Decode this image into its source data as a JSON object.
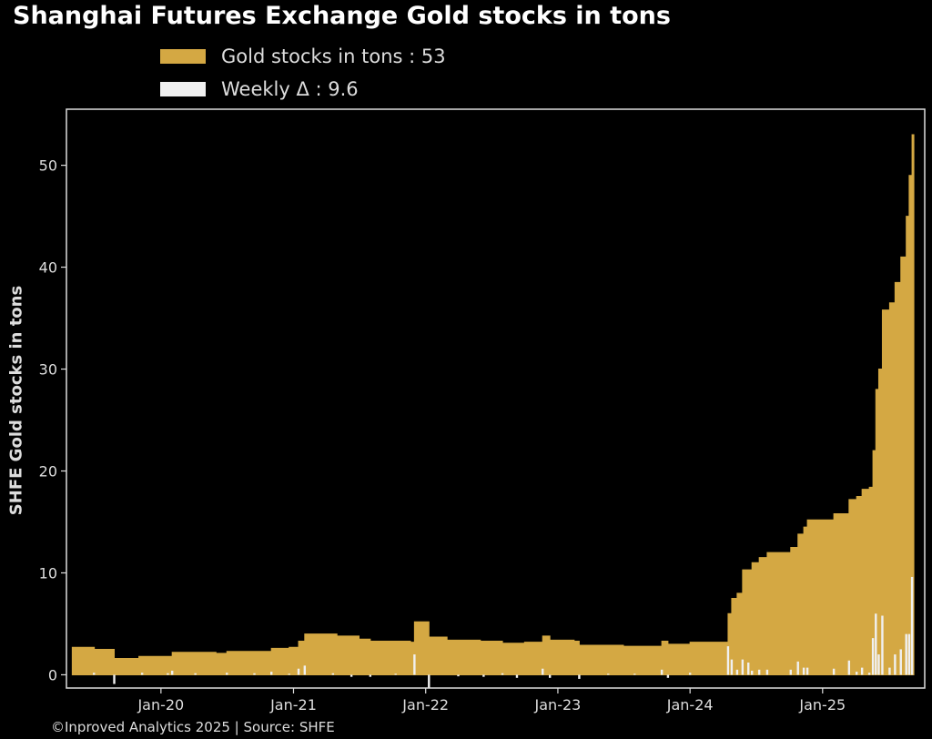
{
  "chart_data": {
    "type": "area",
    "title": "Shanghai Futures Exchange Gold stocks in tons",
    "ylabel": "SHFE Gold stocks in tons",
    "ylim": [
      -1.3,
      55.5
    ],
    "xlim": [
      "2019-04-15",
      "2025-10-10"
    ],
    "yticks": [
      0,
      10,
      20,
      30,
      40,
      50
    ],
    "xticks": [
      {
        "date": "2020-01-01",
        "label": "Jan-20"
      },
      {
        "date": "2021-01-01",
        "label": "Jan-21"
      },
      {
        "date": "2022-01-01",
        "label": "Jan-22"
      },
      {
        "date": "2023-01-01",
        "label": "Jan-23"
      },
      {
        "date": "2024-01-01",
        "label": "Jan-24"
      },
      {
        "date": "2025-01-01",
        "label": "Jan-25"
      }
    ],
    "grid": false,
    "legend_position": "top-left",
    "colors": {
      "stock": "#d4a843",
      "delta": "#f0f0f0",
      "background": "#000000",
      "axis": "#dddddd"
    },
    "series": [
      {
        "name": "Gold stocks in tons",
        "legend_label": "Gold stocks in tons : 53",
        "kind": "area",
        "points": [
          [
            "2019-05-01",
            2.7
          ],
          [
            "2019-06-15",
            2.7
          ],
          [
            "2019-07-01",
            2.5
          ],
          [
            "2019-08-15",
            2.5
          ],
          [
            "2019-08-25",
            1.6
          ],
          [
            "2019-10-15",
            1.6
          ],
          [
            "2019-11-01",
            1.8
          ],
          [
            "2020-01-15",
            1.8
          ],
          [
            "2020-02-01",
            2.2
          ],
          [
            "2020-06-01",
            2.1
          ],
          [
            "2020-07-01",
            2.3
          ],
          [
            "2020-10-01",
            2.3
          ],
          [
            "2020-11-01",
            2.6
          ],
          [
            "2020-12-20",
            2.7
          ],
          [
            "2021-01-15",
            3.3
          ],
          [
            "2021-02-01",
            4.0
          ],
          [
            "2021-05-01",
            3.8
          ],
          [
            "2021-07-01",
            3.5
          ],
          [
            "2021-08-01",
            3.3
          ],
          [
            "2021-11-20",
            3.2
          ],
          [
            "2021-12-01",
            5.2
          ],
          [
            "2021-12-25",
            5.2
          ],
          [
            "2022-01-10",
            3.7
          ],
          [
            "2022-03-01",
            3.4
          ],
          [
            "2022-06-01",
            3.3
          ],
          [
            "2022-08-01",
            3.1
          ],
          [
            "2022-10-01",
            3.2
          ],
          [
            "2022-11-20",
            3.8
          ],
          [
            "2022-12-10",
            3.4
          ],
          [
            "2023-02-15",
            3.3
          ],
          [
            "2023-03-01",
            2.9
          ],
          [
            "2023-07-01",
            2.8
          ],
          [
            "2023-09-01",
            2.8
          ],
          [
            "2023-10-15",
            3.3
          ],
          [
            "2023-11-01",
            3.0
          ],
          [
            "2023-12-15",
            3.0
          ],
          [
            "2024-01-01",
            3.2
          ],
          [
            "2024-04-01",
            3.2
          ],
          [
            "2024-04-15",
            6.0
          ],
          [
            "2024-04-25",
            7.5
          ],
          [
            "2024-05-10",
            8.0
          ],
          [
            "2024-05-25",
            10.3
          ],
          [
            "2024-06-20",
            11.0
          ],
          [
            "2024-07-10",
            11.5
          ],
          [
            "2024-08-01",
            12.0
          ],
          [
            "2024-09-20",
            12.0
          ],
          [
            "2024-10-05",
            12.5
          ],
          [
            "2024-10-25",
            13.8
          ],
          [
            "2024-11-10",
            14.5
          ],
          [
            "2024-11-20",
            15.2
          ],
          [
            "2025-01-20",
            15.2
          ],
          [
            "2025-02-01",
            15.8
          ],
          [
            "2025-03-01",
            15.8
          ],
          [
            "2025-03-15",
            17.2
          ],
          [
            "2025-04-05",
            17.5
          ],
          [
            "2025-04-20",
            18.2
          ],
          [
            "2025-05-10",
            18.4
          ],
          [
            "2025-05-20",
            22.0
          ],
          [
            "2025-05-28",
            28.0
          ],
          [
            "2025-06-05",
            30.0
          ],
          [
            "2025-06-15",
            35.8
          ],
          [
            "2025-07-05",
            36.5
          ],
          [
            "2025-07-20",
            38.5
          ],
          [
            "2025-08-05",
            41.0
          ],
          [
            "2025-08-20",
            45.0
          ],
          [
            "2025-08-28",
            49.0
          ],
          [
            "2025-09-05",
            53.0
          ]
        ]
      },
      {
        "name": "Weekly Δ",
        "legend_label": "Weekly Δ : 9.6",
        "kind": "bar",
        "points": [
          [
            "2019-06-30",
            0.2
          ],
          [
            "2019-08-25",
            -0.9
          ],
          [
            "2019-11-10",
            0.2
          ],
          [
            "2020-01-20",
            0.15
          ],
          [
            "2020-02-01",
            0.4
          ],
          [
            "2020-04-05",
            0.15
          ],
          [
            "2020-07-01",
            0.2
          ],
          [
            "2020-09-15",
            0.15
          ],
          [
            "2020-11-01",
            0.3
          ],
          [
            "2020-12-20",
            0.1
          ],
          [
            "2021-01-15",
            0.6
          ],
          [
            "2021-02-01",
            0.9
          ],
          [
            "2021-04-20",
            0.15
          ],
          [
            "2021-06-10",
            -0.2
          ],
          [
            "2021-08-01",
            -0.2
          ],
          [
            "2021-10-10",
            0.1
          ],
          [
            "2021-12-01",
            2.0
          ],
          [
            "2022-01-10",
            -1.3
          ],
          [
            "2022-04-01",
            -0.15
          ],
          [
            "2022-06-10",
            -0.2
          ],
          [
            "2022-08-01",
            0.15
          ],
          [
            "2022-09-10",
            -0.3
          ],
          [
            "2022-11-20",
            0.6
          ],
          [
            "2022-12-10",
            -0.3
          ],
          [
            "2023-03-01",
            -0.4
          ],
          [
            "2023-05-20",
            0.1
          ],
          [
            "2023-08-01",
            0.1
          ],
          [
            "2023-10-15",
            0.5
          ],
          [
            "2023-11-01",
            -0.3
          ],
          [
            "2024-01-01",
            0.2
          ],
          [
            "2024-04-15",
            2.8
          ],
          [
            "2024-04-25",
            1.5
          ],
          [
            "2024-05-10",
            0.5
          ],
          [
            "2024-05-25",
            1.5
          ],
          [
            "2024-06-10",
            1.2
          ],
          [
            "2024-06-20",
            0.4
          ],
          [
            "2024-07-10",
            0.5
          ],
          [
            "2024-08-01",
            0.5
          ],
          [
            "2024-10-05",
            0.5
          ],
          [
            "2024-10-25",
            1.3
          ],
          [
            "2024-11-10",
            0.7
          ],
          [
            "2024-11-20",
            0.7
          ],
          [
            "2025-02-01",
            0.6
          ],
          [
            "2025-03-15",
            1.4
          ],
          [
            "2025-04-05",
            0.3
          ],
          [
            "2025-04-20",
            0.7
          ],
          [
            "2025-05-10",
            0.2
          ],
          [
            "2025-05-20",
            3.6
          ],
          [
            "2025-05-28",
            6.0
          ],
          [
            "2025-06-05",
            2.0
          ],
          [
            "2025-06-15",
            5.8
          ],
          [
            "2025-07-05",
            0.7
          ],
          [
            "2025-07-20",
            2.0
          ],
          [
            "2025-08-05",
            2.5
          ],
          [
            "2025-08-20",
            4.0
          ],
          [
            "2025-08-28",
            4.0
          ],
          [
            "2025-09-05",
            9.6
          ]
        ]
      }
    ]
  },
  "footer": "©Inproved Analytics 2025 | Source: SHFE"
}
